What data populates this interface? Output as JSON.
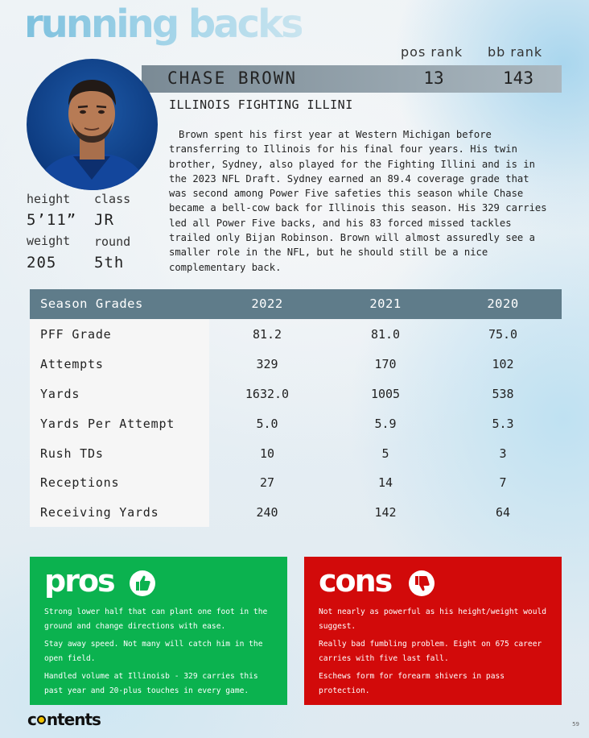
{
  "section": {
    "title": "running backs"
  },
  "ranks": {
    "pos_label": "pos rank",
    "bb_label": "bb rank"
  },
  "player": {
    "name": "CHASE BROWN",
    "pos_rank": "13",
    "bb_rank": "143",
    "school": "ILLINOIS FIGHTING ILLINI",
    "bio": "Brown spent his first year at Western Michigan before transferring to Illinois for his final four years. His twin brother, Sydney, also played for the Fighting Illini and is in the 2023 NFL Draft. Sydney earned an 89.4 coverage grade that was second among Power Five safeties this season while Chase became a bell-cow back for Illinois this season. His 329 carries led all Power Five backs, and his 83 forced missed tackles trailed only Bijan Robinson. Brown will almost assuredly see a smaller role in the NFL, but he should still be a nice complementary back."
  },
  "vitals": {
    "height_label": "height",
    "height": "5’11”",
    "class_label": "class",
    "class": "JR",
    "weight_label": "weight",
    "weight": "205",
    "round_label": "round",
    "round": "5th"
  },
  "grades": {
    "header": [
      "Season Grades",
      "2022",
      "2021",
      "2020"
    ],
    "rows": [
      [
        "PFF Grade",
        "81.2",
        "81.0",
        "75.0"
      ],
      [
        "Attempts",
        "329",
        "170",
        "102"
      ],
      [
        "Yards",
        "1632.0",
        "1005",
        "538"
      ],
      [
        "Yards Per Attempt",
        "5.0",
        "5.9",
        "5.3"
      ],
      [
        "Rush TDs",
        "10",
        "5",
        "3"
      ],
      [
        "Receptions",
        "27",
        "14",
        "7"
      ],
      [
        "Receiving Yards",
        "240",
        "142",
        "64"
      ]
    ]
  },
  "pros": {
    "title": "pros",
    "icon": "thumbs-up-icon",
    "color": "#0bb24f",
    "items": [
      "Strong lower half that can plant one foot in the ground and change directions with ease.",
      "Stay away speed. Not many will catch him in the open field.",
      "Handled volume at Illinoisb - 329 carries this past year and 20-plus touches in every game."
    ]
  },
  "cons": {
    "title": "cons",
    "icon": "thumbs-down-icon",
    "color": "#d20a0a",
    "items": [
      "Not nearly as powerful as his height/weight would suggest.",
      "Really bad fumbling problem. Eight on 675 career carries with five last fall.",
      "Eschews form for forearm shivers in pass protection."
    ]
  },
  "footer": {
    "logo_pre": "c",
    "logo_post": "ntents",
    "page": "59"
  }
}
